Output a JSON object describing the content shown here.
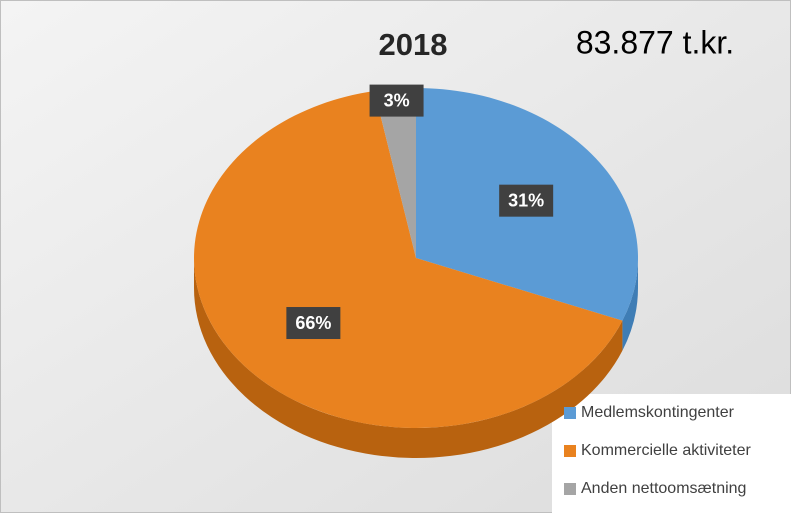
{
  "chart_data": {
    "type": "pie",
    "title": "2018",
    "annotation": "83.877 t.kr.",
    "categories": [
      "Medlemskontingenter",
      "Kommercielle aktiviteter",
      "Anden nettoomsætning"
    ],
    "values": [
      31,
      66,
      3
    ],
    "value_labels": [
      "31%",
      "66%",
      "3%"
    ],
    "colors": [
      "#5b9bd5",
      "#e9821f",
      "#a5a5a5"
    ],
    "side_colors": [
      "#3f7db5",
      "#b8620f",
      "#7f7f7f"
    ],
    "legend": "bottom-right"
  }
}
